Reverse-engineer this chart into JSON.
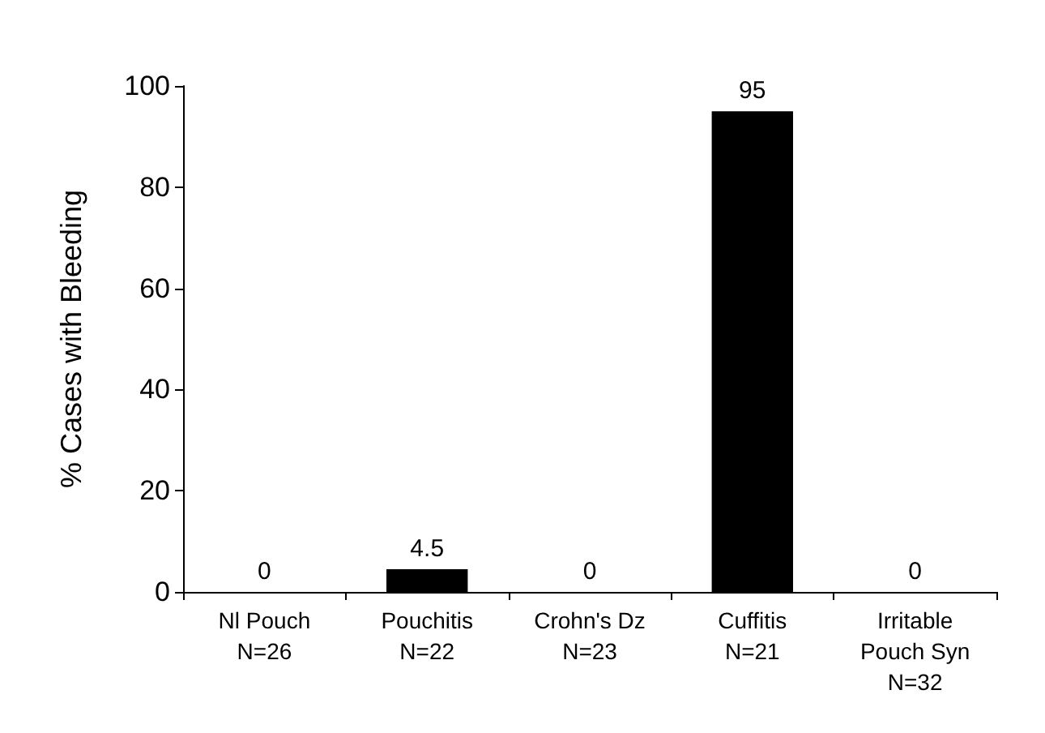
{
  "chart_data": {
    "type": "bar",
    "ylabel": "% Cases with Bleeding",
    "categories": [
      "Nl Pouch\nN=26",
      "Pouchitis\nN=22",
      "Crohn's Dz\nN=23",
      "Cuffitis\nN=21",
      "Irritable\nPouch Syn\nN=32"
    ],
    "values": [
      0,
      4.5,
      0,
      95,
      0
    ],
    "color": "#000000",
    "ylim": [
      0,
      100
    ],
    "yticks": [
      0,
      20,
      40,
      60,
      80,
      100
    ],
    "grid": false,
    "data_labels": true
  }
}
